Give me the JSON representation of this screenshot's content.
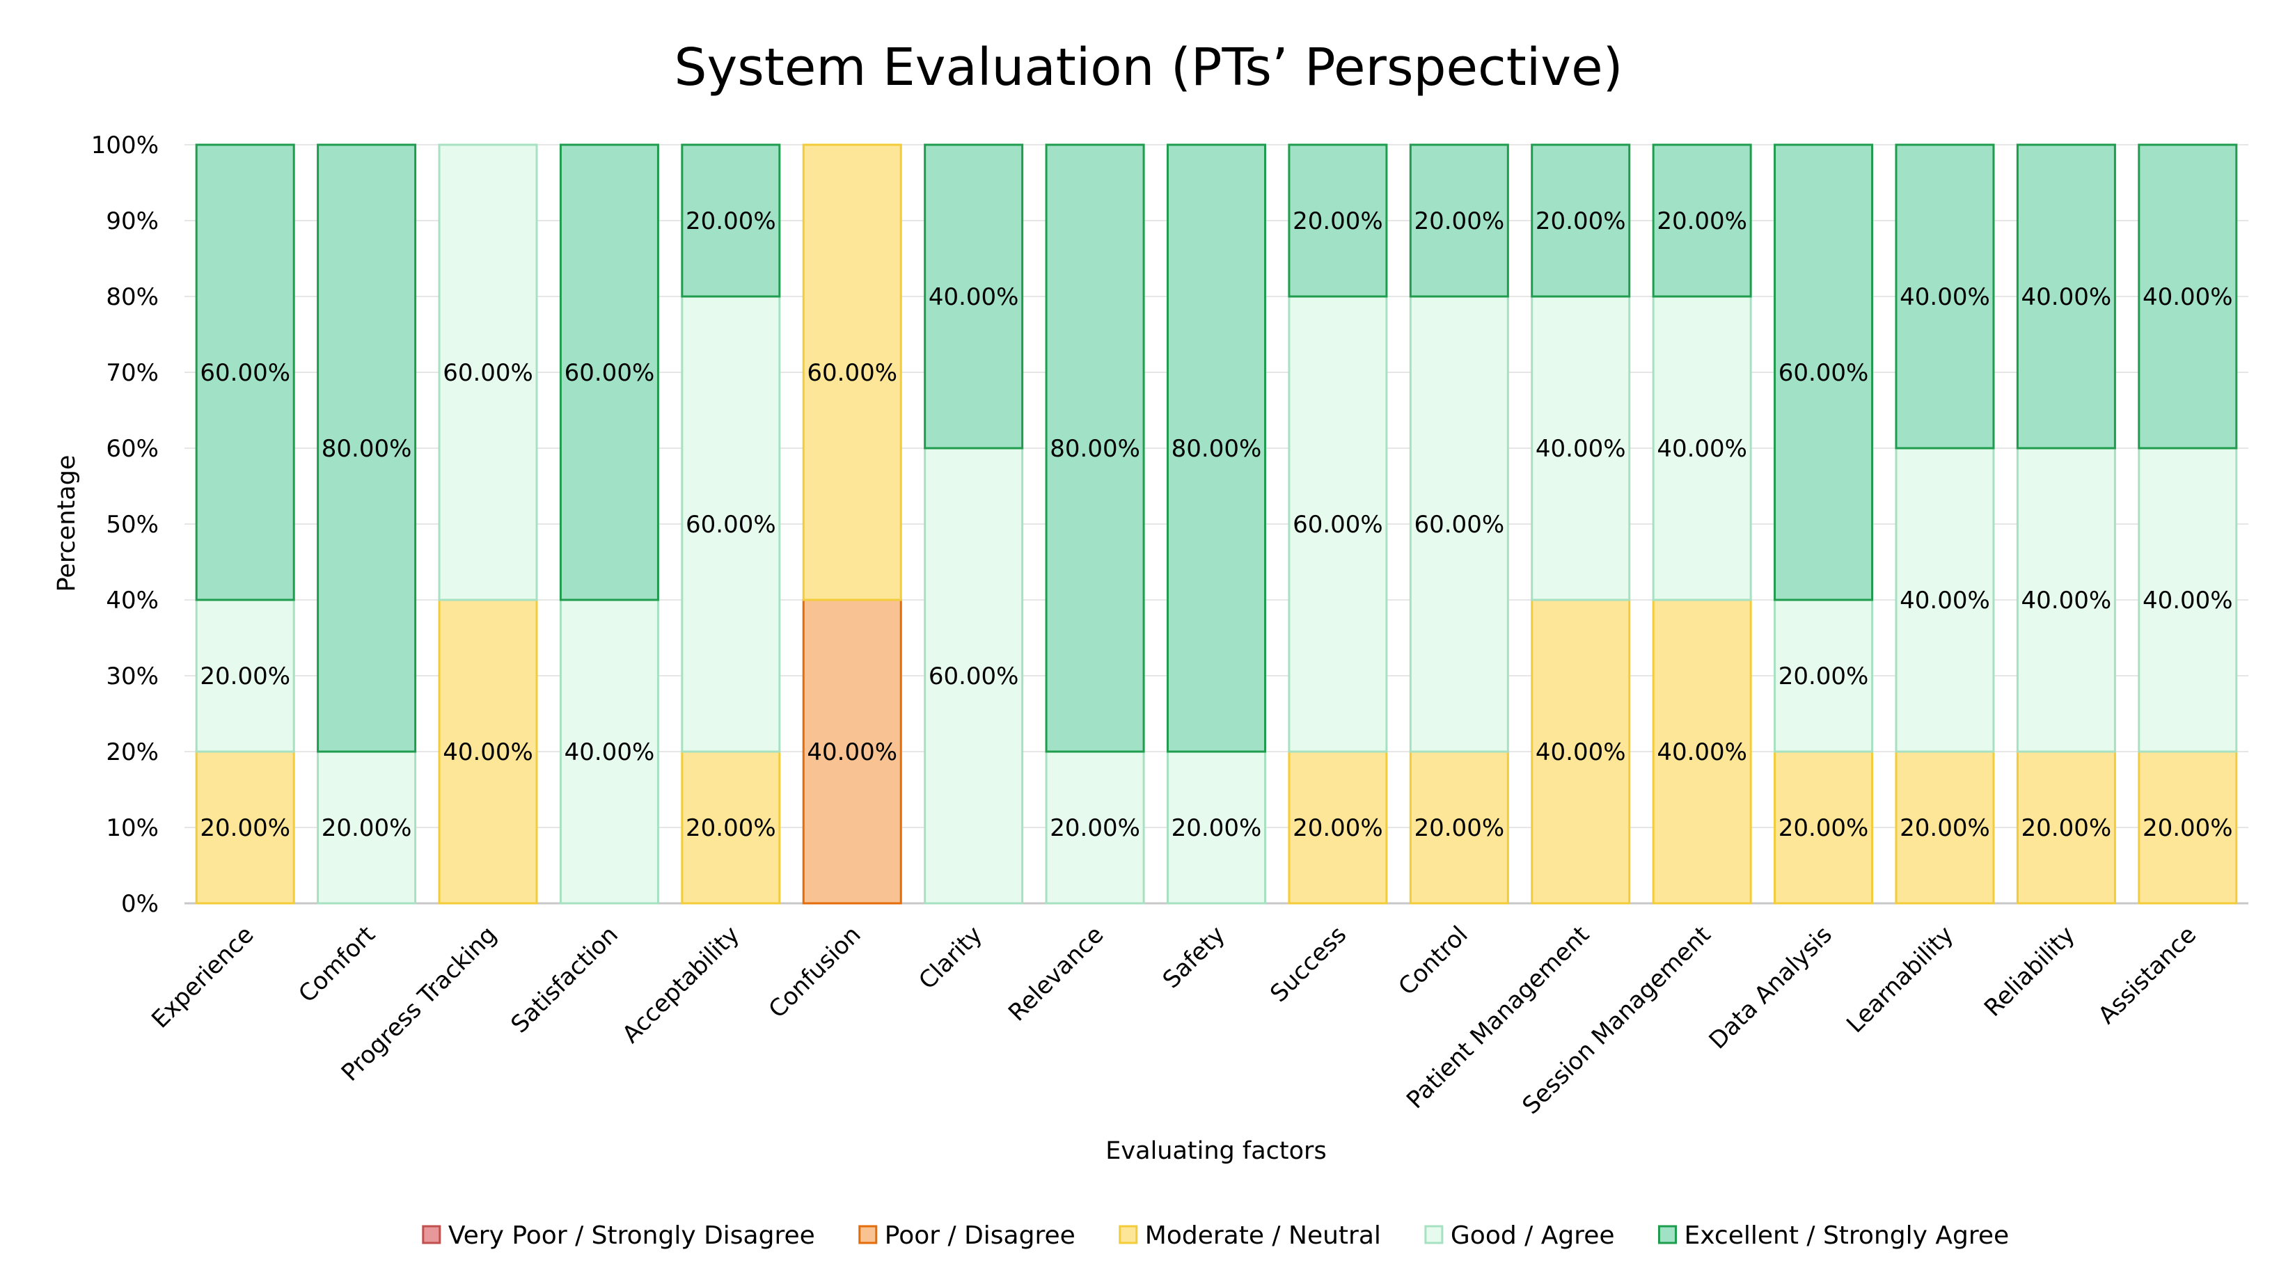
{
  "chart_data": {
    "type": "bar",
    "stacked": true,
    "percent_stacked": true,
    "title": "System Evaluation (PTs’ Perspective)",
    "xlabel": "Evaluating factors",
    "ylabel": "Percentage",
    "ylim": [
      0,
      100
    ],
    "yticks": [
      "0%",
      "10%",
      "20%",
      "30%",
      "40%",
      "50%",
      "60%",
      "70%",
      "80%",
      "90%",
      "100%"
    ],
    "grid": true,
    "legend_position": "bottom",
    "categories": [
      "Experience",
      "Comfort",
      "Progress Tracking",
      "Satisfaction",
      "Acceptability",
      "Confusion",
      "Clarity",
      "Relevance",
      "Safety",
      "Success",
      "Control",
      "Patient Management",
      "Session Management",
      "Data Analysis",
      "Learnability",
      "Reliability",
      "Assistance"
    ],
    "series": [
      {
        "name": "Very Poor / Strongly Disagree",
        "fill": "#e8989a",
        "stroke": "#c0504d",
        "values": [
          0,
          0,
          0,
          0,
          0,
          0,
          0,
          0,
          0,
          0,
          0,
          0,
          0,
          0,
          0,
          0,
          0
        ]
      },
      {
        "name": "Poor / Disagree",
        "fill": "#f8c292",
        "stroke": "#e46c0a",
        "values": [
          0,
          0,
          0,
          0,
          0,
          40,
          0,
          0,
          0,
          0,
          0,
          0,
          0,
          0,
          0,
          0,
          0
        ]
      },
      {
        "name": "Moderate / Neutral",
        "fill": "#fde697",
        "stroke": "#f2cc3a",
        "values": [
          20,
          0,
          40,
          0,
          20,
          60,
          0,
          0,
          0,
          20,
          20,
          40,
          40,
          20,
          20,
          20,
          20
        ]
      },
      {
        "name": "Good / Agree",
        "fill": "#e6fbee",
        "stroke": "#a8e0c2",
        "values": [
          20,
          20,
          60,
          40,
          60,
          0,
          60,
          20,
          20,
          60,
          60,
          40,
          40,
          20,
          40,
          40,
          40
        ]
      },
      {
        "name": "Excellent / Strongly Agree",
        "fill": "#a1e2c6",
        "stroke": "#1f9c4e",
        "values": [
          60,
          80,
          0,
          60,
          20,
          0,
          40,
          80,
          80,
          20,
          20,
          20,
          20,
          60,
          40,
          40,
          40
        ]
      }
    ]
  }
}
